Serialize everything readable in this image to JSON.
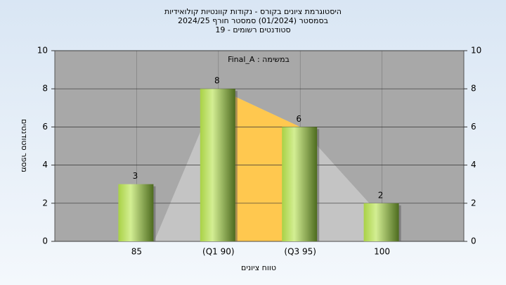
{
  "chart_data": {
    "type": "bar",
    "title": "היסטוגרמת ציונים בקורס - נקודות קוונטיות קולואידיות",
    "subtitle": "בסמסטר  (01/2024)  סמסטר חורף 2024/25",
    "subtitle2": "סטודנטים רשומים - 19",
    "annotation": "במשימה : Final_A",
    "x_label": "טווח ציונים",
    "y_label": "מספר סטודנטים",
    "categories": [
      "85",
      "(Q1 90)",
      "(Q3 95)",
      "100"
    ],
    "values": [
      3,
      8,
      6,
      2
    ],
    "ylim": [
      0,
      10
    ],
    "yticks": [
      0,
      2,
      4,
      6,
      8,
      10
    ],
    "y2lim": [
      0,
      10
    ],
    "y2ticks": [
      0,
      2,
      4,
      6,
      8,
      10
    ],
    "grid": true
  }
}
